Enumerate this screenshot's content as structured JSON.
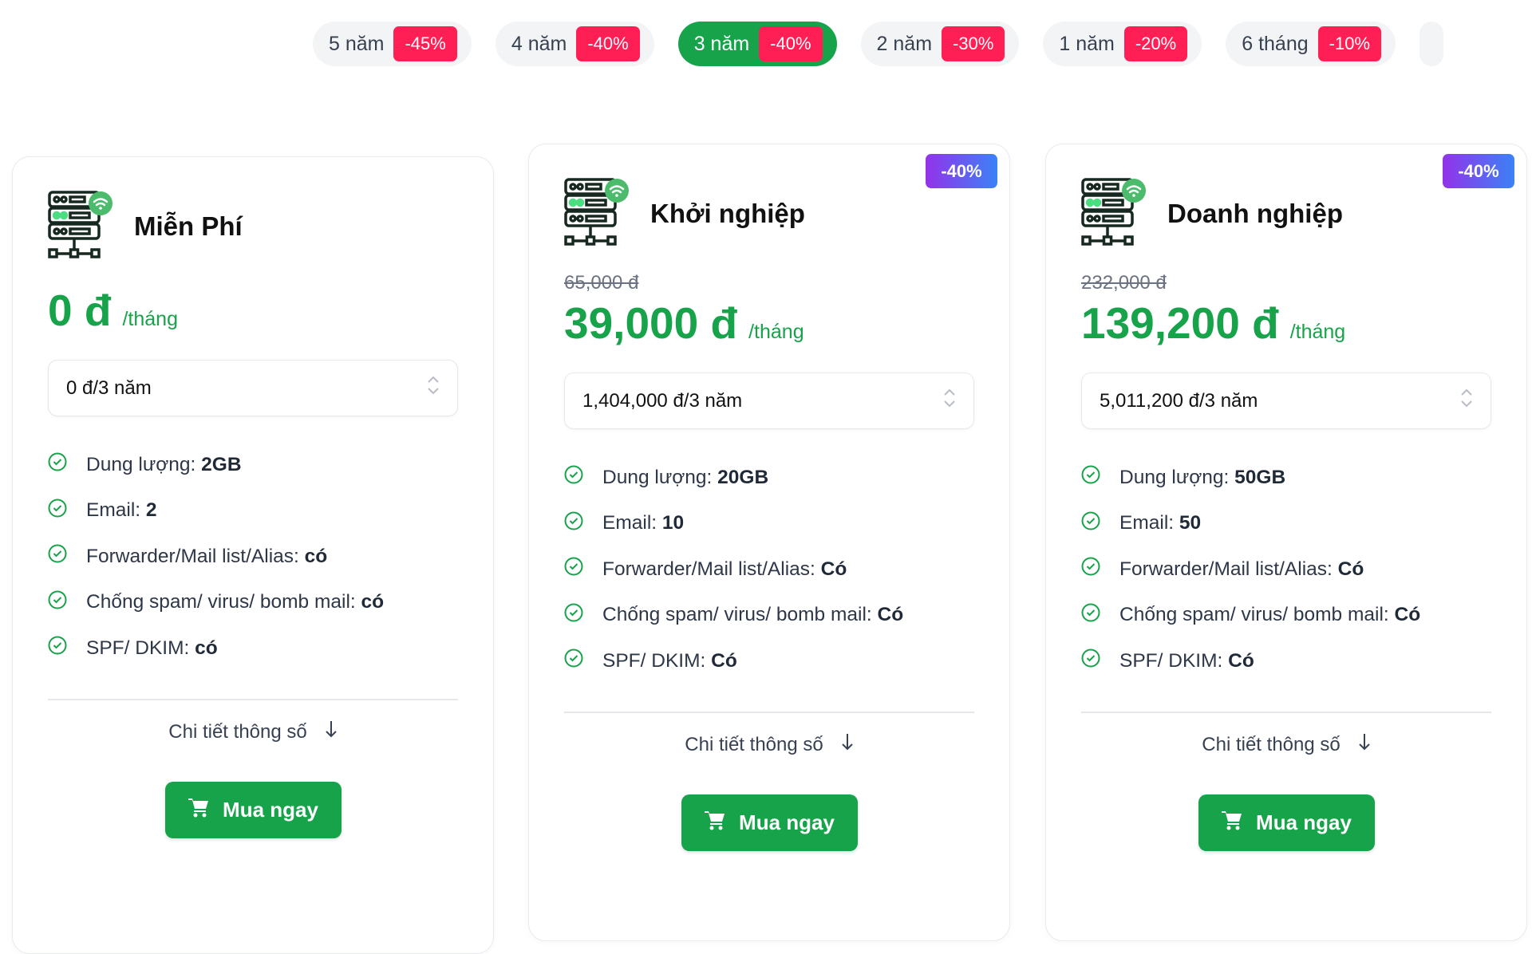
{
  "tabs": [
    {
      "label": "5 năm",
      "discount": "-45%"
    },
    {
      "label": "4 năm",
      "discount": "-40%"
    },
    {
      "label": "3 năm",
      "discount": "-40%",
      "active": true
    },
    {
      "label": "2 năm",
      "discount": "-30%"
    },
    {
      "label": "1 năm",
      "discount": "-20%"
    },
    {
      "label": "6 tháng",
      "discount": "-10%"
    }
  ],
  "colors": {
    "accent": "#16a34a",
    "discount_red": "#ff1f55",
    "badge_gradient": [
      "#9333ea",
      "#3b82f6"
    ]
  },
  "plans": [
    {
      "name": "Miễn Phí",
      "icon": "server-wifi-icon",
      "price": "0 đ",
      "per": "/tháng",
      "period_select": "0 đ/3 năm",
      "features": [
        {
          "label": "Dung lượng: ",
          "value": "2GB"
        },
        {
          "label": "Email: ",
          "value": "2"
        },
        {
          "label": "Forwarder/Mail list/Alias: ",
          "value": "có"
        },
        {
          "label": "Chống spam/ virus/ bomb mail: ",
          "value": "có"
        },
        {
          "label": "SPF/ DKIM: ",
          "value": "có"
        }
      ],
      "details": "Chi tiết thông số",
      "buy": "Mua ngay"
    },
    {
      "name": "Khởi nghiệp",
      "icon": "server-wifi-icon",
      "badge": "-40%",
      "old_price": "65,000 đ",
      "price": "39,000 đ",
      "per": "/tháng",
      "period_select": "1,404,000 đ/3 năm",
      "features": [
        {
          "label": "Dung lượng: ",
          "value": "20GB"
        },
        {
          "label": "Email: ",
          "value": "10"
        },
        {
          "label": "Forwarder/Mail list/Alias: ",
          "value": "Có"
        },
        {
          "label": "Chống spam/ virus/ bomb mail: ",
          "value": "Có"
        },
        {
          "label": "SPF/ DKIM: ",
          "value": "Có"
        }
      ],
      "details": "Chi tiết thông số",
      "buy": "Mua ngay"
    },
    {
      "name": "Doanh nghiệp",
      "icon": "server-wifi-icon",
      "badge": "-40%",
      "old_price": "232,000 đ",
      "price": "139,200 đ",
      "per": "/tháng",
      "period_select": "5,011,200 đ/3 năm",
      "features": [
        {
          "label": "Dung lượng: ",
          "value": "50GB"
        },
        {
          "label": "Email: ",
          "value": "50"
        },
        {
          "label": "Forwarder/Mail list/Alias: ",
          "value": "Có"
        },
        {
          "label": "Chống spam/ virus/ bomb mail: ",
          "value": "Có"
        },
        {
          "label": "SPF/ DKIM: ",
          "value": "Có"
        }
      ],
      "details": "Chi tiết thông số",
      "buy": "Mua ngay"
    }
  ]
}
